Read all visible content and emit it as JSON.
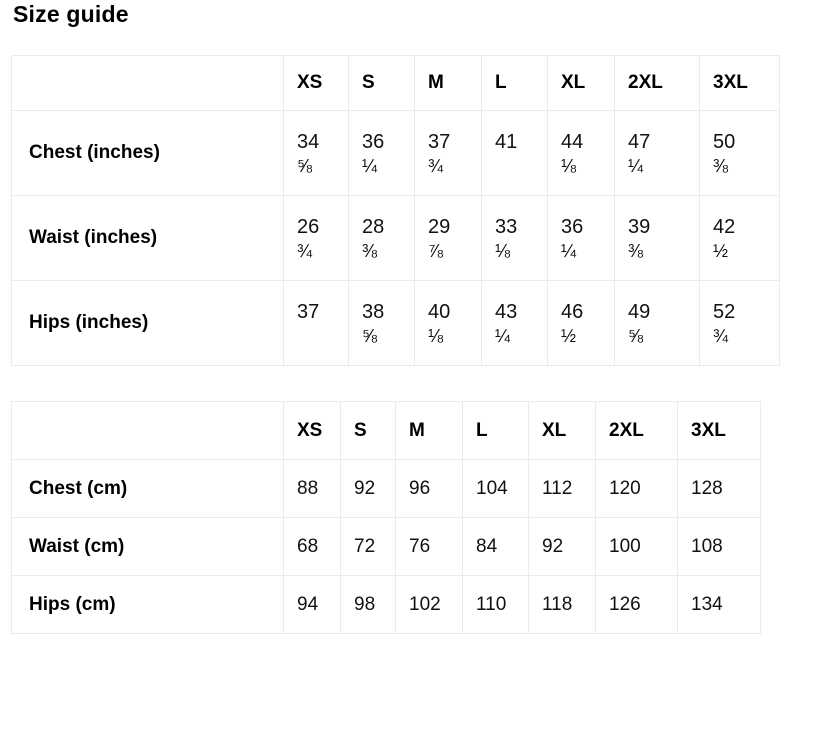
{
  "page_title": "Size guide",
  "colors": {
    "background": "#ffffff",
    "text": "#111111",
    "border": "#ebebeb"
  },
  "tables": [
    {
      "id": "inches",
      "corner": "",
      "columns": [
        "XS",
        "S",
        "M",
        "L",
        "XL",
        "2XL",
        "3XL"
      ],
      "rows": [
        {
          "label": "Chest (inches)",
          "values": [
            {
              "w": "34",
              "f": "⅝"
            },
            {
              "w": "36",
              "f": "¼"
            },
            {
              "w": "37",
              "f": "¾"
            },
            {
              "w": "41",
              "f": ""
            },
            {
              "w": "44",
              "f": "⅛"
            },
            {
              "w": "47",
              "f": "¼"
            },
            {
              "w": "50",
              "f": "⅜"
            }
          ]
        },
        {
          "label": "Waist (inches)",
          "values": [
            {
              "w": "26",
              "f": "¾"
            },
            {
              "w": "28",
              "f": "⅜"
            },
            {
              "w": "29",
              "f": "⅞"
            },
            {
              "w": "33",
              "f": "⅛"
            },
            {
              "w": "36",
              "f": "¼"
            },
            {
              "w": "39",
              "f": "⅜"
            },
            {
              "w": "42",
              "f": "½"
            }
          ]
        },
        {
          "label": "Hips (inches)",
          "values": [
            {
              "w": "37",
              "f": ""
            },
            {
              "w": "38",
              "f": "⅝"
            },
            {
              "w": "40",
              "f": "⅛"
            },
            {
              "w": "43",
              "f": "¼"
            },
            {
              "w": "46",
              "f": "½"
            },
            {
              "w": "49",
              "f": "⅝"
            },
            {
              "w": "52",
              "f": "¾"
            }
          ]
        }
      ]
    },
    {
      "id": "cm",
      "corner": "",
      "columns": [
        "XS",
        "S",
        "M",
        "L",
        "XL",
        "2XL",
        "3XL"
      ],
      "rows": [
        {
          "label": "Chest (cm)",
          "values": [
            "88",
            "92",
            "96",
            "104",
            "112",
            "120",
            "128"
          ]
        },
        {
          "label": "Waist (cm)",
          "values": [
            "68",
            "72",
            "76",
            "84",
            "92",
            "100",
            "108"
          ]
        },
        {
          "label": "Hips (cm)",
          "values": [
            "94",
            "98",
            "102",
            "110",
            "118",
            "126",
            "134"
          ]
        }
      ]
    }
  ]
}
